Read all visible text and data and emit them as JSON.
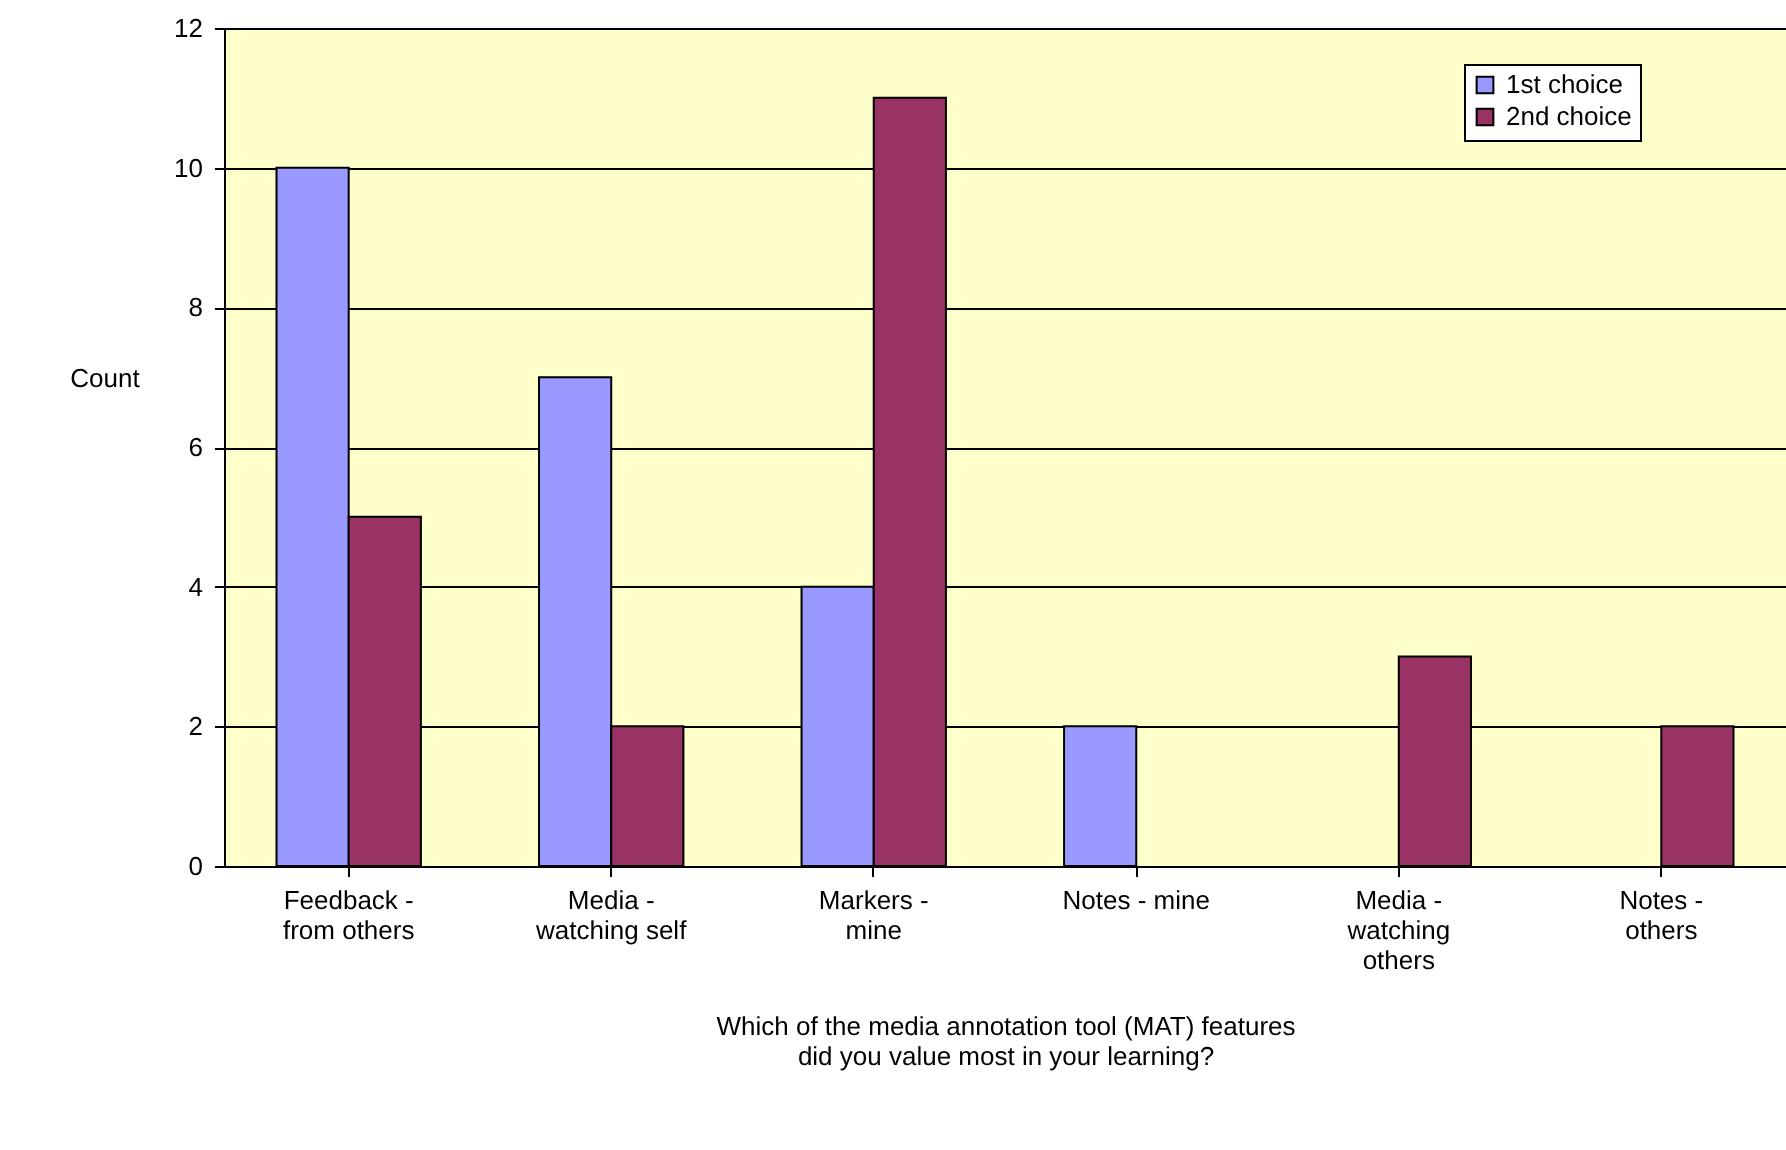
{
  "chart_data": {
    "type": "bar",
    "xlabel": "Which of the media annotation tool (MAT) features\ndid you value most in your learning?",
    "ylabel": "Count",
    "categories": [
      "Feedback -\nfrom others",
      "Media -\nwatching self",
      "Markers -\nmine",
      "Notes - mine",
      "Media -\nwatching\nothers",
      "Notes -\nothers"
    ],
    "series": [
      {
        "name": "1st choice",
        "color": "#9999ff",
        "values": [
          10,
          7,
          4,
          2,
          0,
          0
        ]
      },
      {
        "name": "2nd choice",
        "color": "#993366",
        "values": [
          5,
          2,
          11,
          0,
          3,
          2
        ]
      }
    ],
    "ylim": [
      0,
      12
    ],
    "yticks": [
      0,
      2,
      4,
      6,
      8,
      10,
      12
    ],
    "grid": "y",
    "legend": "top right"
  }
}
